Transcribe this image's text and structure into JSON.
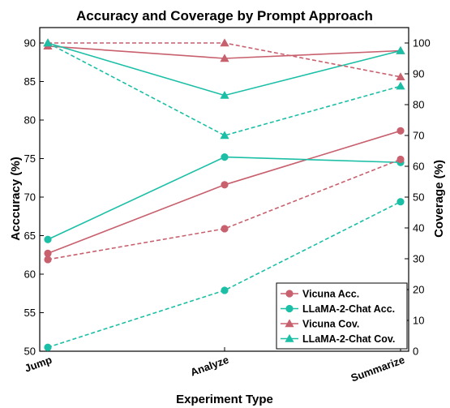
{
  "chart_data": {
    "type": "line",
    "title": "Accuracy and Coverage by Prompt Approach",
    "xlabel": "Experiment Type",
    "ylabel_left": "Acccuracy (%)",
    "ylabel_right": "Coverage (%)",
    "categories": [
      "Jump",
      "Analyze",
      "Summarize"
    ],
    "ylim_left": [
      50,
      92
    ],
    "ylim_right": [
      0,
      105
    ],
    "yticks_left": [
      50,
      55,
      60,
      65,
      70,
      75,
      80,
      85,
      90
    ],
    "yticks_right": [
      0,
      10,
      20,
      30,
      40,
      50,
      60,
      70,
      80,
      90,
      100
    ],
    "legend_position": "bottom-right",
    "grid": false,
    "series": [
      {
        "name": "Vicuna Acc.",
        "axis": "left",
        "color": "#c8606e",
        "marker": "circle",
        "dash": "solid",
        "values": [
          62.7,
          71.6,
          78.6
        ]
      },
      {
        "name": "LLaMA-2-Chat Acc.",
        "axis": "left",
        "color": "#1bbfa6",
        "marker": "circle",
        "dash": "solid",
        "values": [
          64.5,
          75.2,
          74.5
        ]
      },
      {
        "name": "Vicuna Cov.",
        "axis": "right",
        "color": "#c8606e",
        "marker": "triangle",
        "dash": "solid",
        "values": [
          99.0,
          95.0,
          97.5
        ]
      },
      {
        "name": "LLaMA-2-Chat Cov.",
        "axis": "right",
        "color": "#1bbfa6",
        "marker": "triangle",
        "dash": "solid",
        "values": [
          100.0,
          83.0,
          97.5
        ]
      },
      {
        "name": "",
        "axis": "left",
        "color": "#c8606e",
        "marker": "circle",
        "dash": "dashed",
        "values": [
          61.9,
          65.9,
          74.9
        ]
      },
      {
        "name": "",
        "axis": "left",
        "color": "#1bbfa6",
        "marker": "circle",
        "dash": "dashed",
        "values": [
          50.5,
          57.9,
          69.4
        ]
      },
      {
        "name": "",
        "axis": "right",
        "color": "#c8606e",
        "marker": "triangle",
        "dash": "dashed",
        "values": [
          100.0,
          100.0,
          89.0
        ]
      },
      {
        "name": "",
        "axis": "right",
        "color": "#1bbfa6",
        "marker": "triangle",
        "dash": "dashed",
        "values": [
          100.0,
          70.0,
          86.0
        ]
      }
    ]
  }
}
